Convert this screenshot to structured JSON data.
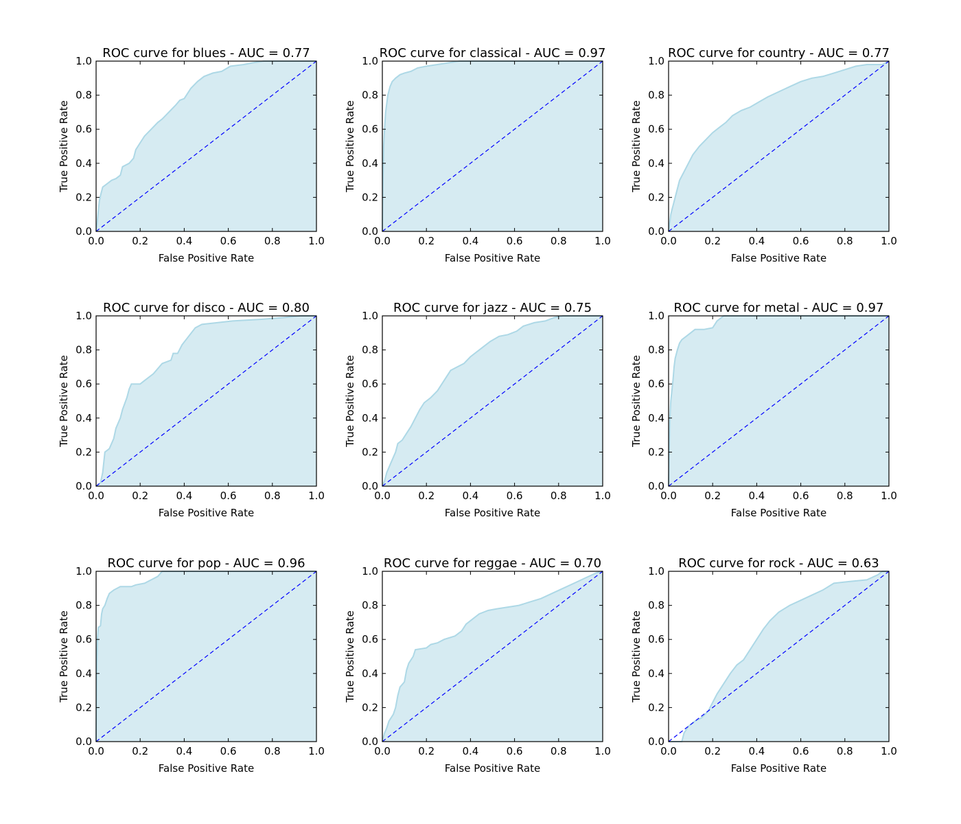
{
  "figure": {
    "background": "#ffffff"
  },
  "style": {
    "fill_color": "#add8e6",
    "fill_opacity": 0.5,
    "curve_color": "#add8e6",
    "diagonal_color": "#0000ff"
  },
  "chart_data": [
    {
      "type": "area",
      "title": "ROC curve for blues - AUC = 0.77",
      "xlabel": "False Positive Rate",
      "ylabel": "True Positive Rate",
      "xlim": [
        0,
        1
      ],
      "ylim": [
        0,
        1
      ],
      "xticks": [
        "0.0",
        "0.2",
        "0.4",
        "0.6",
        "0.8",
        "1.0"
      ],
      "yticks": [
        "0.0",
        "0.2",
        "0.4",
        "0.6",
        "0.8",
        "1.0"
      ],
      "grid": false,
      "diagonal": [
        [
          0,
          0
        ],
        [
          1,
          1
        ]
      ],
      "points": [
        [
          0,
          0
        ],
        [
          0.005,
          0.05
        ],
        [
          0.01,
          0.12
        ],
        [
          0.015,
          0.18
        ],
        [
          0.02,
          0.21
        ],
        [
          0.03,
          0.26
        ],
        [
          0.05,
          0.28
        ],
        [
          0.07,
          0.3
        ],
        [
          0.09,
          0.31
        ],
        [
          0.11,
          0.33
        ],
        [
          0.12,
          0.38
        ],
        [
          0.15,
          0.4
        ],
        [
          0.17,
          0.43
        ],
        [
          0.18,
          0.48
        ],
        [
          0.2,
          0.52
        ],
        [
          0.22,
          0.56
        ],
        [
          0.25,
          0.6
        ],
        [
          0.28,
          0.64
        ],
        [
          0.3,
          0.66
        ],
        [
          0.33,
          0.7
        ],
        [
          0.36,
          0.74
        ],
        [
          0.38,
          0.77
        ],
        [
          0.4,
          0.78
        ],
        [
          0.43,
          0.84
        ],
        [
          0.46,
          0.88
        ],
        [
          0.49,
          0.91
        ],
        [
          0.53,
          0.93
        ],
        [
          0.57,
          0.94
        ],
        [
          0.61,
          0.97
        ],
        [
          0.67,
          0.98
        ],
        [
          0.71,
          0.99
        ],
        [
          0.76,
          1.0
        ],
        [
          1,
          1
        ]
      ]
    },
    {
      "type": "area",
      "title": "ROC curve for classical - AUC = 0.97",
      "xlabel": "False Positive Rate",
      "ylabel": "True Positive Rate",
      "xlim": [
        0,
        1
      ],
      "ylim": [
        0,
        1
      ],
      "xticks": [
        "0.0",
        "0.2",
        "0.4",
        "0.6",
        "0.8",
        "1.0"
      ],
      "yticks": [
        "0.0",
        "0.2",
        "0.4",
        "0.6",
        "0.8",
        "1.0"
      ],
      "grid": false,
      "diagonal": [
        [
          0,
          0
        ],
        [
          1,
          1
        ]
      ],
      "points": [
        [
          0,
          0
        ],
        [
          0.003,
          0.3
        ],
        [
          0.006,
          0.5
        ],
        [
          0.01,
          0.6
        ],
        [
          0.015,
          0.7
        ],
        [
          0.02,
          0.75
        ],
        [
          0.025,
          0.8
        ],
        [
          0.035,
          0.85
        ],
        [
          0.045,
          0.88
        ],
        [
          0.06,
          0.9
        ],
        [
          0.08,
          0.92
        ],
        [
          0.1,
          0.93
        ],
        [
          0.13,
          0.94
        ],
        [
          0.16,
          0.96
        ],
        [
          0.2,
          0.97
        ],
        [
          0.25,
          0.98
        ],
        [
          0.3,
          0.99
        ],
        [
          0.35,
          1.0
        ],
        [
          1,
          1
        ]
      ]
    },
    {
      "type": "area",
      "title": "ROC curve for country - AUC = 0.77",
      "xlabel": "False Positive Rate",
      "ylabel": "True Positive Rate",
      "xlim": [
        0,
        1
      ],
      "ylim": [
        0,
        1
      ],
      "xticks": [
        "0.0",
        "0.2",
        "0.4",
        "0.6",
        "0.8",
        "1.0"
      ],
      "yticks": [
        "0.0",
        "0.2",
        "0.4",
        "0.6",
        "0.8",
        "1.0"
      ],
      "grid": false,
      "diagonal": [
        [
          0,
          0
        ],
        [
          1,
          1
        ]
      ],
      "points": [
        [
          0,
          0
        ],
        [
          0.005,
          0.05
        ],
        [
          0.01,
          0.1
        ],
        [
          0.02,
          0.15
        ],
        [
          0.03,
          0.2
        ],
        [
          0.04,
          0.25
        ],
        [
          0.05,
          0.3
        ],
        [
          0.07,
          0.35
        ],
        [
          0.09,
          0.4
        ],
        [
          0.11,
          0.45
        ],
        [
          0.14,
          0.5
        ],
        [
          0.17,
          0.54
        ],
        [
          0.2,
          0.58
        ],
        [
          0.23,
          0.61
        ],
        [
          0.26,
          0.64
        ],
        [
          0.29,
          0.68
        ],
        [
          0.33,
          0.71
        ],
        [
          0.37,
          0.73
        ],
        [
          0.41,
          0.76
        ],
        [
          0.45,
          0.79
        ],
        [
          0.5,
          0.82
        ],
        [
          0.55,
          0.85
        ],
        [
          0.6,
          0.88
        ],
        [
          0.65,
          0.9
        ],
        [
          0.7,
          0.91
        ],
        [
          0.75,
          0.93
        ],
        [
          0.8,
          0.95
        ],
        [
          0.85,
          0.97
        ],
        [
          0.9,
          0.98
        ],
        [
          0.97,
          0.98
        ],
        [
          1,
          1
        ]
      ]
    },
    {
      "type": "area",
      "title": "ROC curve for disco - AUC = 0.80",
      "xlabel": "False Positive Rate",
      "ylabel": "True Positive Rate",
      "xlim": [
        0,
        1
      ],
      "ylim": [
        0,
        1
      ],
      "xticks": [
        "0.0",
        "0.2",
        "0.4",
        "0.6",
        "0.8",
        "1.0"
      ],
      "yticks": [
        "0.0",
        "0.2",
        "0.4",
        "0.6",
        "0.8",
        "1.0"
      ],
      "grid": false,
      "diagonal": [
        [
          0,
          0
        ],
        [
          1,
          1
        ]
      ],
      "points": [
        [
          0,
          0
        ],
        [
          0.02,
          0.02
        ],
        [
          0.03,
          0.08
        ],
        [
          0.04,
          0.2
        ],
        [
          0.06,
          0.22
        ],
        [
          0.08,
          0.28
        ],
        [
          0.09,
          0.34
        ],
        [
          0.11,
          0.4
        ],
        [
          0.12,
          0.45
        ],
        [
          0.14,
          0.52
        ],
        [
          0.15,
          0.57
        ],
        [
          0.16,
          0.6
        ],
        [
          0.2,
          0.6
        ],
        [
          0.22,
          0.62
        ],
        [
          0.26,
          0.66
        ],
        [
          0.3,
          0.72
        ],
        [
          0.34,
          0.74
        ],
        [
          0.35,
          0.78
        ],
        [
          0.37,
          0.78
        ],
        [
          0.39,
          0.83
        ],
        [
          0.42,
          0.88
        ],
        [
          0.45,
          0.93
        ],
        [
          0.48,
          0.95
        ],
        [
          0.55,
          0.96
        ],
        [
          0.62,
          0.97
        ],
        [
          0.75,
          0.98
        ],
        [
          0.85,
          0.99
        ],
        [
          0.93,
          1.0
        ],
        [
          1,
          1
        ]
      ]
    },
    {
      "type": "area",
      "title": "ROC curve for jazz - AUC = 0.75",
      "xlabel": "False Positive Rate",
      "ylabel": "True Positive Rate",
      "xlim": [
        0,
        1
      ],
      "ylim": [
        0,
        1
      ],
      "xticks": [
        "0.0",
        "0.2",
        "0.4",
        "0.6",
        "0.8",
        "1.0"
      ],
      "yticks": [
        "0.0",
        "0.2",
        "0.4",
        "0.6",
        "0.8",
        "1.0"
      ],
      "grid": false,
      "diagonal": [
        [
          0,
          0
        ],
        [
          1,
          1
        ]
      ],
      "points": [
        [
          0,
          0
        ],
        [
          0.01,
          0.03
        ],
        [
          0.02,
          0.08
        ],
        [
          0.04,
          0.14
        ],
        [
          0.06,
          0.2
        ],
        [
          0.07,
          0.25
        ],
        [
          0.09,
          0.27
        ],
        [
          0.11,
          0.31
        ],
        [
          0.13,
          0.35
        ],
        [
          0.15,
          0.4
        ],
        [
          0.17,
          0.45
        ],
        [
          0.19,
          0.49
        ],
        [
          0.22,
          0.52
        ],
        [
          0.25,
          0.56
        ],
        [
          0.27,
          0.6
        ],
        [
          0.29,
          0.64
        ],
        [
          0.31,
          0.68
        ],
        [
          0.34,
          0.7
        ],
        [
          0.37,
          0.72
        ],
        [
          0.4,
          0.76
        ],
        [
          0.43,
          0.79
        ],
        [
          0.46,
          0.82
        ],
        [
          0.49,
          0.85
        ],
        [
          0.53,
          0.88
        ],
        [
          0.57,
          0.89
        ],
        [
          0.61,
          0.91
        ],
        [
          0.64,
          0.94
        ],
        [
          0.69,
          0.96
        ],
        [
          0.74,
          0.97
        ],
        [
          0.78,
          0.99
        ],
        [
          0.82,
          1.0
        ],
        [
          1,
          1
        ]
      ]
    },
    {
      "type": "area",
      "title": "ROC curve for metal - AUC = 0.97",
      "xlabel": "False Positive Rate",
      "ylabel": "True Positive Rate",
      "xlim": [
        0,
        1
      ],
      "ylim": [
        0,
        1
      ],
      "xticks": [
        "0.0",
        "0.2",
        "0.4",
        "0.6",
        "0.8",
        "1.0"
      ],
      "yticks": [
        "0.0",
        "0.2",
        "0.4",
        "0.6",
        "0.8",
        "1.0"
      ],
      "grid": false,
      "diagonal": [
        [
          0,
          0
        ],
        [
          1,
          1
        ]
      ],
      "points": [
        [
          0,
          0
        ],
        [
          0.003,
          0.2
        ],
        [
          0.006,
          0.4
        ],
        [
          0.01,
          0.5
        ],
        [
          0.015,
          0.56
        ],
        [
          0.02,
          0.62
        ],
        [
          0.025,
          0.7
        ],
        [
          0.03,
          0.75
        ],
        [
          0.04,
          0.8
        ],
        [
          0.05,
          0.84
        ],
        [
          0.06,
          0.86
        ],
        [
          0.08,
          0.88
        ],
        [
          0.1,
          0.9
        ],
        [
          0.12,
          0.92
        ],
        [
          0.16,
          0.92
        ],
        [
          0.2,
          0.93
        ],
        [
          0.22,
          0.97
        ],
        [
          0.25,
          1.0
        ],
        [
          1,
          1
        ]
      ]
    },
    {
      "type": "area",
      "title": "ROC curve for pop - AUC = 0.96",
      "xlabel": "False Positive Rate",
      "ylabel": "True Positive Rate",
      "xlim": [
        0,
        1
      ],
      "ylim": [
        0,
        1
      ],
      "xticks": [
        "0.0",
        "0.2",
        "0.4",
        "0.6",
        "0.8",
        "1.0"
      ],
      "yticks": [
        "0.0",
        "0.2",
        "0.4",
        "0.6",
        "0.8",
        "1.0"
      ],
      "grid": false,
      "diagonal": [
        [
          0,
          0
        ],
        [
          1,
          1
        ]
      ],
      "points": [
        [
          0,
          0
        ],
        [
          0.003,
          0.45
        ],
        [
          0.006,
          0.6
        ],
        [
          0.01,
          0.67
        ],
        [
          0.02,
          0.68
        ],
        [
          0.025,
          0.75
        ],
        [
          0.03,
          0.78
        ],
        [
          0.04,
          0.8
        ],
        [
          0.05,
          0.84
        ],
        [
          0.06,
          0.87
        ],
        [
          0.08,
          0.89
        ],
        [
          0.11,
          0.91
        ],
        [
          0.16,
          0.91
        ],
        [
          0.18,
          0.92
        ],
        [
          0.22,
          0.93
        ],
        [
          0.25,
          0.95
        ],
        [
          0.28,
          0.97
        ],
        [
          0.3,
          1.0
        ],
        [
          1,
          1
        ]
      ]
    },
    {
      "type": "area",
      "title": "ROC curve for reggae - AUC = 0.70",
      "xlabel": "False Positive Rate",
      "ylabel": "True Positive Rate",
      "xlim": [
        0,
        1
      ],
      "ylim": [
        0,
        1
      ],
      "xticks": [
        "0.0",
        "0.2",
        "0.4",
        "0.6",
        "0.8",
        "1.0"
      ],
      "yticks": [
        "0.0",
        "0.2",
        "0.4",
        "0.6",
        "0.8",
        "1.0"
      ],
      "grid": false,
      "diagonal": [
        [
          0,
          0
        ],
        [
          1,
          1
        ]
      ],
      "points": [
        [
          0,
          0
        ],
        [
          0.01,
          0.05
        ],
        [
          0.02,
          0.08
        ],
        [
          0.03,
          0.12
        ],
        [
          0.05,
          0.16
        ],
        [
          0.06,
          0.2
        ],
        [
          0.07,
          0.27
        ],
        [
          0.08,
          0.32
        ],
        [
          0.1,
          0.35
        ],
        [
          0.11,
          0.42
        ],
        [
          0.12,
          0.46
        ],
        [
          0.14,
          0.5
        ],
        [
          0.15,
          0.54
        ],
        [
          0.2,
          0.55
        ],
        [
          0.22,
          0.57
        ],
        [
          0.25,
          0.58
        ],
        [
          0.28,
          0.6
        ],
        [
          0.33,
          0.62
        ],
        [
          0.36,
          0.65
        ],
        [
          0.38,
          0.69
        ],
        [
          0.41,
          0.72
        ],
        [
          0.44,
          0.75
        ],
        [
          0.48,
          0.77
        ],
        [
          0.52,
          0.78
        ],
        [
          0.57,
          0.79
        ],
        [
          0.62,
          0.8
        ],
        [
          0.67,
          0.82
        ],
        [
          0.72,
          0.84
        ],
        [
          0.77,
          0.87
        ],
        [
          0.82,
          0.9
        ],
        [
          0.87,
          0.93
        ],
        [
          0.92,
          0.96
        ],
        [
          0.97,
          0.99
        ],
        [
          1,
          1
        ]
      ]
    },
    {
      "type": "area",
      "title": "ROC curve for rock - AUC = 0.63",
      "xlabel": "False Positive Rate",
      "ylabel": "True Positive Rate",
      "xlim": [
        0,
        1
      ],
      "ylim": [
        0,
        1
      ],
      "xticks": [
        "0.0",
        "0.2",
        "0.4",
        "0.6",
        "0.8",
        "1.0"
      ],
      "yticks": [
        "0.0",
        "0.2",
        "0.4",
        "0.6",
        "0.8",
        "1.0"
      ],
      "grid": false,
      "diagonal": [
        [
          0,
          0
        ],
        [
          1,
          1
        ]
      ],
      "points": [
        [
          0,
          0
        ],
        [
          0.06,
          0.0
        ],
        [
          0.07,
          0.05
        ],
        [
          0.09,
          0.09
        ],
        [
          0.12,
          0.12
        ],
        [
          0.15,
          0.14
        ],
        [
          0.18,
          0.18
        ],
        [
          0.2,
          0.23
        ],
        [
          0.22,
          0.28
        ],
        [
          0.25,
          0.34
        ],
        [
          0.28,
          0.4
        ],
        [
          0.31,
          0.45
        ],
        [
          0.34,
          0.48
        ],
        [
          0.37,
          0.54
        ],
        [
          0.4,
          0.6
        ],
        [
          0.43,
          0.66
        ],
        [
          0.46,
          0.71
        ],
        [
          0.5,
          0.76
        ],
        [
          0.55,
          0.8
        ],
        [
          0.6,
          0.83
        ],
        [
          0.65,
          0.86
        ],
        [
          0.7,
          0.89
        ],
        [
          0.75,
          0.93
        ],
        [
          0.82,
          0.94
        ],
        [
          0.9,
          0.95
        ],
        [
          0.95,
          0.98
        ],
        [
          0.97,
          1.0
        ],
        [
          1,
          1
        ]
      ]
    }
  ]
}
